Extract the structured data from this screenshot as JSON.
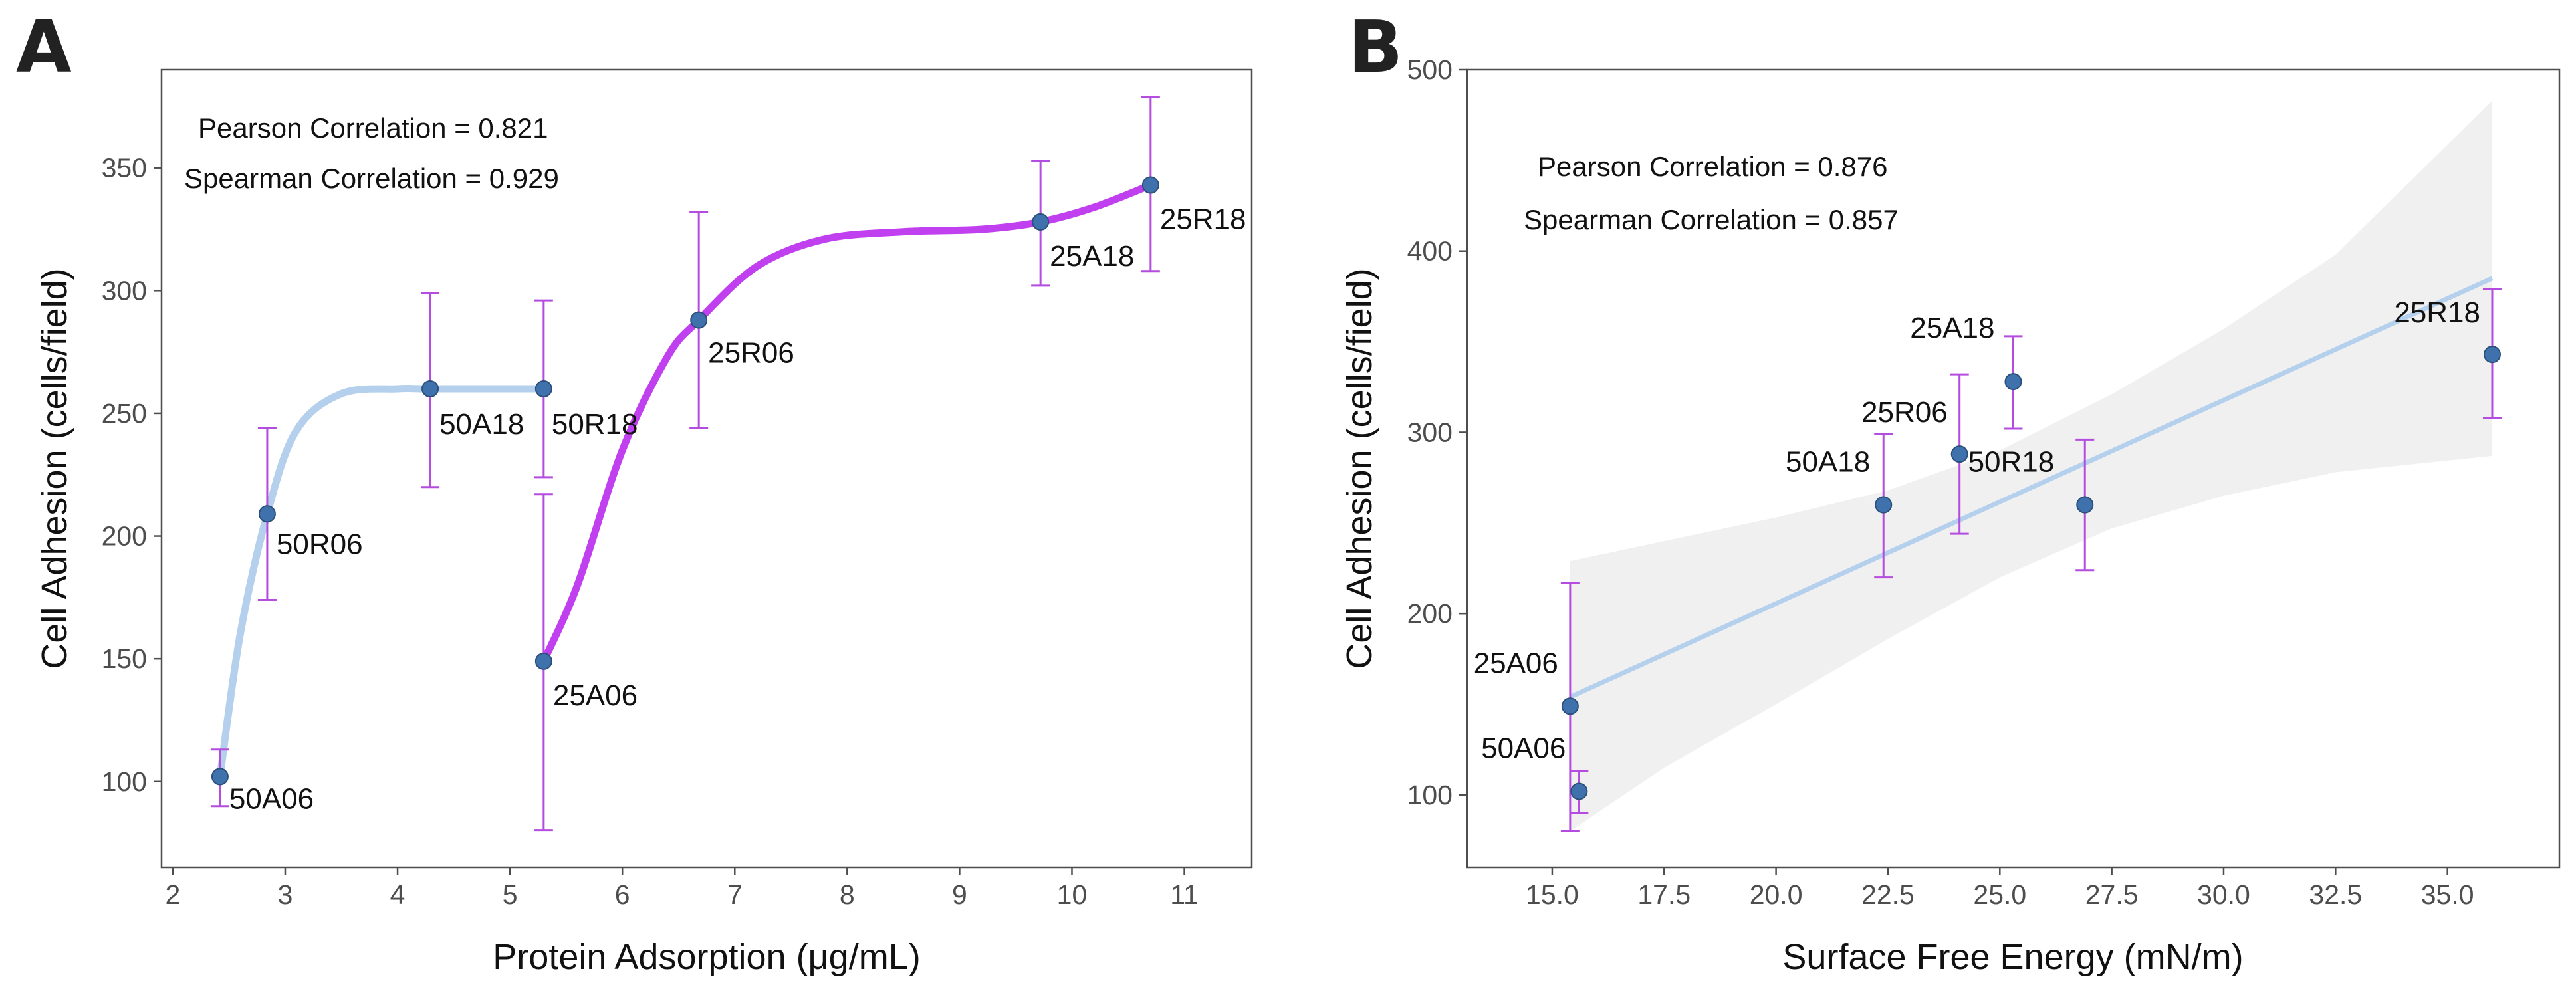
{
  "chart_data": [
    {
      "panel": "A",
      "type": "scatter",
      "xlabel": "Protein Adsorption (μg/mL)",
      "ylabel": "Cell Adhesion (cells/field)",
      "xlim": [
        1.9,
        11.6
      ],
      "ylim": [
        65,
        390
      ],
      "xticks": [
        2,
        3,
        4,
        5,
        6,
        7,
        8,
        9,
        10,
        11
      ],
      "yticks": [
        100,
        150,
        200,
        250,
        300,
        350
      ],
      "annotations": [
        "Pearson Correlation = 0.821",
        "Spearman Correlation = 0.929"
      ],
      "points": [
        {
          "label": "50A06",
          "x": 2.42,
          "y": 102,
          "err_low": 90,
          "err_high": 113,
          "series": "50"
        },
        {
          "label": "50R06",
          "x": 2.84,
          "y": 209,
          "err_low": 174,
          "err_high": 244,
          "series": "50"
        },
        {
          "label": "50A18",
          "x": 4.29,
          "y": 260,
          "err_low": 220,
          "err_high": 299,
          "series": "50"
        },
        {
          "label": "50R18",
          "x": 5.3,
          "y": 260,
          "err_low": 224,
          "err_high": 296,
          "series": "50"
        },
        {
          "label": "25A06",
          "x": 5.3,
          "y": 149,
          "err_low": 80,
          "err_high": 217,
          "series": "25"
        },
        {
          "label": "25R06",
          "x": 6.68,
          "y": 288,
          "err_low": 244,
          "err_high": 332,
          "series": "25"
        },
        {
          "label": "25A18",
          "x": 9.72,
          "y": 328,
          "err_low": 302,
          "err_high": 353,
          "series": "25"
        },
        {
          "label": "25R18",
          "x": 10.7,
          "y": 343,
          "err_low": 308,
          "err_high": 379,
          "series": "25"
        }
      ],
      "curves": [
        {
          "name": "50",
          "color": "#b4d0ec",
          "points": [
            [
              2.42,
              102
            ],
            [
              2.6,
              160
            ],
            [
              2.84,
              209
            ],
            [
              3.1,
              243
            ],
            [
              3.5,
              258
            ],
            [
              4.0,
              260
            ],
            [
              4.29,
              260
            ],
            [
              5.3,
              260
            ]
          ]
        },
        {
          "name": "25",
          "color": "#c040f0",
          "points": [
            [
              5.3,
              149
            ],
            [
              5.6,
              180
            ],
            [
              6.0,
              235
            ],
            [
              6.4,
              273
            ],
            [
              6.68,
              288
            ],
            [
              7.2,
              310
            ],
            [
              7.8,
              321
            ],
            [
              8.5,
              324
            ],
            [
              9.2,
              325
            ],
            [
              9.72,
              328
            ],
            [
              10.2,
              334
            ],
            [
              10.7,
              343
            ]
          ]
        }
      ]
    },
    {
      "panel": "B",
      "type": "scatter",
      "xlabel": "Surface Free Energy (mN/m)",
      "ylabel": "Cell Adhesion (cells/field)",
      "xlim": [
        13.1,
        37.5
      ],
      "ylim": [
        60,
        500
      ],
      "xticks": [
        15.0,
        17.5,
        20.0,
        22.5,
        25.0,
        27.5,
        30.0,
        32.5,
        35.0
      ],
      "yticks": [
        100,
        200,
        300,
        400,
        500
      ],
      "annotations": [
        "Pearson Correlation = 0.876",
        "Spearman Correlation = 0.857"
      ],
      "points": [
        {
          "label": "50A06",
          "x": 15.6,
          "y": 102,
          "err_low": 90,
          "err_high": 113
        },
        {
          "label": "25A06",
          "x": 15.4,
          "y": 149,
          "err_low": 80,
          "err_high": 217
        },
        {
          "label": "50A18",
          "x": 22.4,
          "y": 260,
          "err_low": 220,
          "err_high": 299
        },
        {
          "label": "25R06",
          "x": 24.1,
          "y": 288,
          "err_low": 244,
          "err_high": 332
        },
        {
          "label": "25A18",
          "x": 25.3,
          "y": 328,
          "err_low": 302,
          "err_high": 353
        },
        {
          "label": "50R18",
          "x": 26.9,
          "y": 260,
          "err_low": 224,
          "err_high": 296
        },
        {
          "label": "25R18",
          "x": 36.0,
          "y": 343,
          "err_low": 308,
          "err_high": 379
        }
      ],
      "fit": {
        "x": [
          15.4,
          36.0
        ],
        "y": [
          154,
          385
        ],
        "color": "#b4d0ec"
      },
      "confidence_band": {
        "x": [
          15.4,
          17.5,
          20.0,
          22.5,
          25.0,
          27.5,
          30.0,
          32.5,
          36.0
        ],
        "upper": [
          229,
          240,
          253,
          268,
          290,
          321,
          357,
          398,
          483
        ],
        "lower": [
          80,
          115,
          150,
          186,
          220,
          247,
          265,
          278,
          287
        ]
      }
    }
  ]
}
